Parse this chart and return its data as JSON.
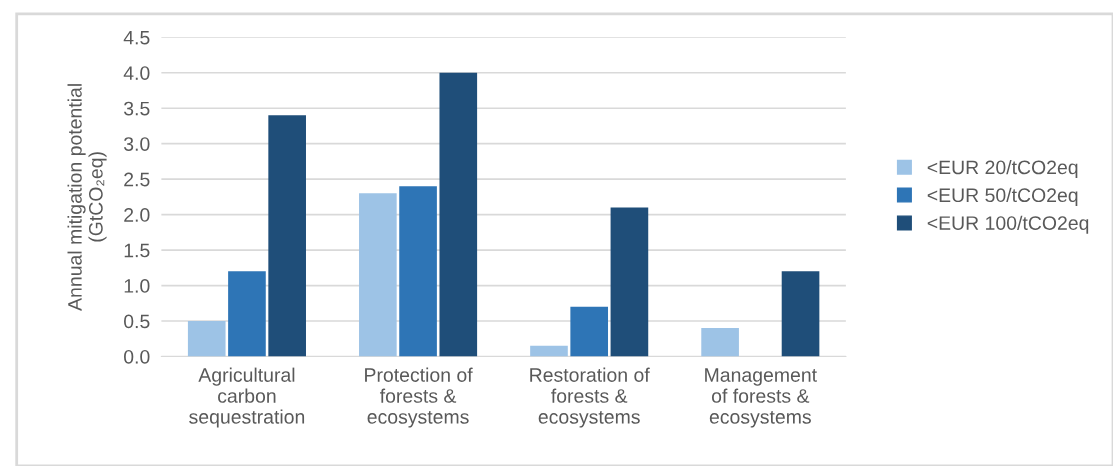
{
  "chart_data": {
    "type": "bar",
    "ylabel": "Annual mitigation potential\n(GtCO₂eq)",
    "categories": [
      "Agricultural\ncarbon\nsequestration",
      "Protection of\nforests &\necosystems",
      "Restoration of\nforests &\necosystems",
      "Management\nof forests &\necosystems"
    ],
    "series": [
      {
        "name": "<EUR 20/tCO2eq",
        "color": "#9dc3e6",
        "values": [
          0.5,
          2.3,
          0.15,
          0.4
        ]
      },
      {
        "name": "<EUR 50/tCO2eq",
        "color": "#2e75b6",
        "values": [
          1.2,
          2.4,
          0.7,
          null
        ]
      },
      {
        "name": "<EUR 100/tCO2eq",
        "color": "#1f4e79",
        "values": [
          3.4,
          4.0,
          2.1,
          1.2
        ]
      }
    ],
    "ylim": [
      0,
      4.5
    ],
    "yticks": [
      {
        "value": 0,
        "label": "0.0"
      },
      {
        "value": 0.5,
        "label": "0.5"
      },
      {
        "value": 1,
        "label": "1.0"
      },
      {
        "value": 1.5,
        "label": "1.5"
      },
      {
        "value": 2,
        "label": "2.0"
      },
      {
        "value": 2.5,
        "label": "2.5"
      },
      {
        "value": 3,
        "label": "3.0"
      },
      {
        "value": 3.5,
        "label": "3.5"
      },
      {
        "value": 4,
        "label": "4.0"
      },
      {
        "value": 4.5,
        "label": "4.5"
      }
    ],
    "grid": "y",
    "legend": "right"
  }
}
